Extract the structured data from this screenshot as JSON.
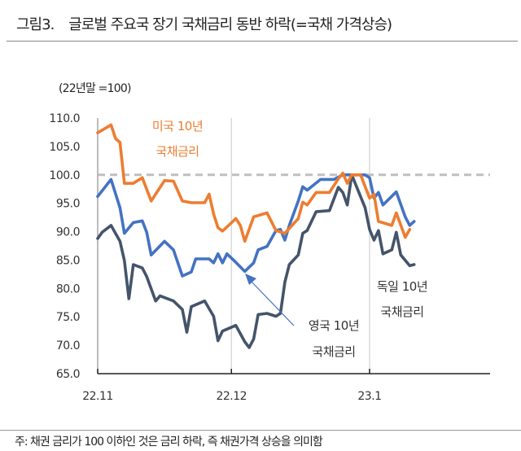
{
  "header": {
    "figure_number": "그림3.",
    "title": "글로벌 주요국 장기 국채금리 동반 하락(=국채 가격상승)"
  },
  "footnote": "주: 채권 금리가 100 이하인 것은 금리 하락, 즉 채권가격 상승을 의미함",
  "chart_data": {
    "type": "line",
    "title": "글로벌 주요국 장기 국채금리 동반 하락(=국채 가격상승)",
    "unit_label": "(22년말  =100)",
    "ylim": [
      65,
      110
    ],
    "y_ticks": [
      "110.0",
      "105.0",
      "100.0",
      "95.0",
      "90.0",
      "85.0",
      "80.0",
      "75.0",
      "70.0",
      "65.0"
    ],
    "x_ticks": [
      {
        "label": "22.11",
        "date": "2022-11-01"
      },
      {
        "label": "22.12",
        "date": "2022-12-01"
      },
      {
        "label": "23.1",
        "date": "2023-01-01"
      }
    ],
    "x_range": [
      "2022-11-01",
      "2023-01-31"
    ],
    "reference_line": {
      "value": 100,
      "style": "dashed",
      "color": "#BFBFBF"
    },
    "grid": "vertical lines at month ticks",
    "series": [
      {
        "name": "미국 10년 국채금리",
        "label_lines": [
          "미국 10년",
          "국채금리"
        ],
        "color": "#ED7D31",
        "points": [
          [
            "2022-11-01",
            107.4
          ],
          [
            "2022-11-04",
            108.8
          ],
          [
            "2022-11-05",
            106.4
          ],
          [
            "2022-11-06",
            105.7
          ],
          [
            "2022-11-07",
            98.5
          ],
          [
            "2022-11-09",
            98.5
          ],
          [
            "2022-11-11",
            99.5
          ],
          [
            "2022-11-13",
            95.4
          ],
          [
            "2022-11-16",
            99.0
          ],
          [
            "2022-11-18",
            98.9
          ],
          [
            "2022-11-20",
            95.4
          ],
          [
            "2022-11-22",
            95.1
          ],
          [
            "2022-11-25",
            95.1
          ],
          [
            "2022-11-26",
            96.6
          ],
          [
            "2022-11-27",
            93.1
          ],
          [
            "2022-11-28",
            90.7
          ],
          [
            "2022-11-29",
            90.1
          ],
          [
            "2022-12-02",
            92.3
          ],
          [
            "2022-12-03",
            91.1
          ],
          [
            "2022-12-04",
            88.3
          ],
          [
            "2022-12-06",
            92.6
          ],
          [
            "2022-12-09",
            93.3
          ],
          [
            "2022-12-11",
            90.2
          ],
          [
            "2022-12-13",
            89.7
          ],
          [
            "2022-12-16",
            92.3
          ],
          [
            "2022-12-17",
            95.2
          ],
          [
            "2022-12-18",
            94.7
          ],
          [
            "2022-12-20",
            96.9
          ],
          [
            "2022-12-23",
            96.9
          ],
          [
            "2022-12-25",
            99.3
          ],
          [
            "2022-12-26",
            100.3
          ],
          [
            "2022-12-27",
            98.5
          ],
          [
            "2022-12-28",
            100.0
          ],
          [
            "2022-12-30",
            100.0
          ],
          [
            "2023-01-01",
            95.9
          ],
          [
            "2023-01-02",
            96.6
          ],
          [
            "2023-01-03",
            91.8
          ],
          [
            "2023-01-06",
            91.1
          ],
          [
            "2023-01-07",
            93.3
          ],
          [
            "2023-01-09",
            89.0
          ],
          [
            "2023-01-10",
            90.4
          ]
        ]
      },
      {
        "name": "영국 10년 국채금리",
        "label_lines": [
          "영국 10년",
          "국채금리"
        ],
        "color": "#4472C4",
        "points": [
          [
            "2022-11-01",
            96.2
          ],
          [
            "2022-11-04",
            99.2
          ],
          [
            "2022-11-06",
            94.2
          ],
          [
            "2022-11-07",
            89.7
          ],
          [
            "2022-11-09",
            91.6
          ],
          [
            "2022-11-11",
            91.9
          ],
          [
            "2022-11-12",
            89.9
          ],
          [
            "2022-11-13",
            85.9
          ],
          [
            "2022-11-16",
            88.3
          ],
          [
            "2022-11-18",
            86.8
          ],
          [
            "2022-11-20",
            82.2
          ],
          [
            "2022-11-22",
            82.9
          ],
          [
            "2022-11-23",
            85.2
          ],
          [
            "2022-11-26",
            85.2
          ],
          [
            "2022-11-27",
            84.5
          ],
          [
            "2022-11-28",
            86.1
          ],
          [
            "2022-11-29",
            84.5
          ],
          [
            "2022-11-30",
            86.1
          ],
          [
            "2022-12-02",
            84.6
          ],
          [
            "2022-12-04",
            83.0
          ],
          [
            "2022-12-06",
            84.5
          ],
          [
            "2022-12-07",
            86.8
          ],
          [
            "2022-12-09",
            87.4
          ],
          [
            "2022-12-11",
            90.2
          ],
          [
            "2022-12-12",
            90.4
          ],
          [
            "2022-12-13",
            88.5
          ],
          [
            "2022-12-14",
            91.1
          ],
          [
            "2022-12-16",
            95.4
          ],
          [
            "2022-12-17",
            97.9
          ],
          [
            "2022-12-18",
            97.3
          ],
          [
            "2022-12-21",
            99.2
          ],
          [
            "2022-12-24",
            99.2
          ],
          [
            "2022-12-26",
            100.0
          ],
          [
            "2022-12-28",
            100.0
          ],
          [
            "2022-12-31",
            100.0
          ],
          [
            "2023-01-01",
            99.5
          ],
          [
            "2023-01-02",
            95.9
          ],
          [
            "2023-01-03",
            96.9
          ],
          [
            "2023-01-04",
            94.7
          ],
          [
            "2023-01-07",
            97.0
          ],
          [
            "2023-01-09",
            92.6
          ],
          [
            "2023-01-10",
            91.1
          ],
          [
            "2023-01-11",
            91.8
          ]
        ]
      },
      {
        "name": "독일 10년 국채금리",
        "label_lines": [
          "독일 10년",
          "국채금리"
        ],
        "color": "#44546A",
        "points": [
          [
            "2022-11-01",
            88.8
          ],
          [
            "2022-11-02",
            89.9
          ],
          [
            "2022-11-04",
            91.1
          ],
          [
            "2022-11-06",
            88.3
          ],
          [
            "2022-11-07",
            84.9
          ],
          [
            "2022-11-08",
            78.2
          ],
          [
            "2022-11-09",
            84.2
          ],
          [
            "2022-11-11",
            83.6
          ],
          [
            "2022-11-12",
            82.1
          ],
          [
            "2022-11-14",
            77.8
          ],
          [
            "2022-11-15",
            78.7
          ],
          [
            "2022-11-18",
            77.8
          ],
          [
            "2022-11-20",
            76.3
          ],
          [
            "2022-11-21",
            72.3
          ],
          [
            "2022-11-22",
            76.8
          ],
          [
            "2022-11-25",
            77.8
          ],
          [
            "2022-11-27",
            75.1
          ],
          [
            "2022-11-28",
            70.8
          ],
          [
            "2022-11-29",
            72.5
          ],
          [
            "2022-12-02",
            73.5
          ],
          [
            "2022-12-04",
            70.6
          ],
          [
            "2022-12-05",
            69.6
          ],
          [
            "2022-12-06",
            71.1
          ],
          [
            "2022-12-07",
            75.4
          ],
          [
            "2022-12-09",
            75.6
          ],
          [
            "2022-12-11",
            75.1
          ],
          [
            "2022-12-12",
            75.6
          ],
          [
            "2022-12-13",
            81.1
          ],
          [
            "2022-12-14",
            84.2
          ],
          [
            "2022-12-16",
            85.9
          ],
          [
            "2022-12-17",
            89.7
          ],
          [
            "2022-12-18",
            90.2
          ],
          [
            "2022-12-20",
            93.5
          ],
          [
            "2022-12-23",
            93.7
          ],
          [
            "2022-12-25",
            97.8
          ],
          [
            "2022-12-26",
            96.9
          ],
          [
            "2022-12-27",
            94.7
          ],
          [
            "2022-12-28",
            100.0
          ],
          [
            "2022-12-31",
            94.2
          ],
          [
            "2023-01-01",
            90.4
          ],
          [
            "2023-01-02",
            88.5
          ],
          [
            "2023-01-03",
            90.2
          ],
          [
            "2023-01-04",
            86.1
          ],
          [
            "2023-01-06",
            86.8
          ],
          [
            "2023-01-07",
            89.9
          ],
          [
            "2023-01-08",
            85.9
          ],
          [
            "2023-01-10",
            84.0
          ],
          [
            "2023-01-11",
            84.2
          ]
        ]
      }
    ]
  }
}
